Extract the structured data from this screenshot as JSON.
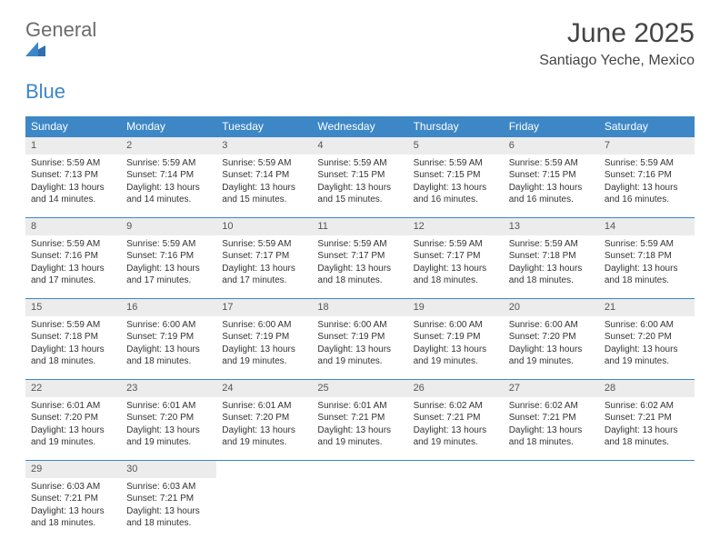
{
  "logo": {
    "word1": "General",
    "word2": "Blue"
  },
  "title": "June 2025",
  "subtitle": "Santiago Yeche, Mexico",
  "colors": {
    "header_bg": "#3d87c7",
    "header_text": "#ffffff",
    "daynum_bg": "#ececec",
    "border": "#3d87c7",
    "text": "#333333",
    "logo_gray": "#6b6b6b",
    "logo_blue": "#3d87c7",
    "page_bg": "#ffffff"
  },
  "weekdays": [
    "Sunday",
    "Monday",
    "Tuesday",
    "Wednesday",
    "Thursday",
    "Friday",
    "Saturday"
  ],
  "weeks": [
    [
      {
        "n": "1",
        "sr": "Sunrise: 5:59 AM",
        "ss": "Sunset: 7:13 PM",
        "d1": "Daylight: 13 hours",
        "d2": "and 14 minutes."
      },
      {
        "n": "2",
        "sr": "Sunrise: 5:59 AM",
        "ss": "Sunset: 7:14 PM",
        "d1": "Daylight: 13 hours",
        "d2": "and 14 minutes."
      },
      {
        "n": "3",
        "sr": "Sunrise: 5:59 AM",
        "ss": "Sunset: 7:14 PM",
        "d1": "Daylight: 13 hours",
        "d2": "and 15 minutes."
      },
      {
        "n": "4",
        "sr": "Sunrise: 5:59 AM",
        "ss": "Sunset: 7:15 PM",
        "d1": "Daylight: 13 hours",
        "d2": "and 15 minutes."
      },
      {
        "n": "5",
        "sr": "Sunrise: 5:59 AM",
        "ss": "Sunset: 7:15 PM",
        "d1": "Daylight: 13 hours",
        "d2": "and 16 minutes."
      },
      {
        "n": "6",
        "sr": "Sunrise: 5:59 AM",
        "ss": "Sunset: 7:15 PM",
        "d1": "Daylight: 13 hours",
        "d2": "and 16 minutes."
      },
      {
        "n": "7",
        "sr": "Sunrise: 5:59 AM",
        "ss": "Sunset: 7:16 PM",
        "d1": "Daylight: 13 hours",
        "d2": "and 16 minutes."
      }
    ],
    [
      {
        "n": "8",
        "sr": "Sunrise: 5:59 AM",
        "ss": "Sunset: 7:16 PM",
        "d1": "Daylight: 13 hours",
        "d2": "and 17 minutes."
      },
      {
        "n": "9",
        "sr": "Sunrise: 5:59 AM",
        "ss": "Sunset: 7:16 PM",
        "d1": "Daylight: 13 hours",
        "d2": "and 17 minutes."
      },
      {
        "n": "10",
        "sr": "Sunrise: 5:59 AM",
        "ss": "Sunset: 7:17 PM",
        "d1": "Daylight: 13 hours",
        "d2": "and 17 minutes."
      },
      {
        "n": "11",
        "sr": "Sunrise: 5:59 AM",
        "ss": "Sunset: 7:17 PM",
        "d1": "Daylight: 13 hours",
        "d2": "and 18 minutes."
      },
      {
        "n": "12",
        "sr": "Sunrise: 5:59 AM",
        "ss": "Sunset: 7:17 PM",
        "d1": "Daylight: 13 hours",
        "d2": "and 18 minutes."
      },
      {
        "n": "13",
        "sr": "Sunrise: 5:59 AM",
        "ss": "Sunset: 7:18 PM",
        "d1": "Daylight: 13 hours",
        "d2": "and 18 minutes."
      },
      {
        "n": "14",
        "sr": "Sunrise: 5:59 AM",
        "ss": "Sunset: 7:18 PM",
        "d1": "Daylight: 13 hours",
        "d2": "and 18 minutes."
      }
    ],
    [
      {
        "n": "15",
        "sr": "Sunrise: 5:59 AM",
        "ss": "Sunset: 7:18 PM",
        "d1": "Daylight: 13 hours",
        "d2": "and 18 minutes."
      },
      {
        "n": "16",
        "sr": "Sunrise: 6:00 AM",
        "ss": "Sunset: 7:19 PM",
        "d1": "Daylight: 13 hours",
        "d2": "and 18 minutes."
      },
      {
        "n": "17",
        "sr": "Sunrise: 6:00 AM",
        "ss": "Sunset: 7:19 PM",
        "d1": "Daylight: 13 hours",
        "d2": "and 19 minutes."
      },
      {
        "n": "18",
        "sr": "Sunrise: 6:00 AM",
        "ss": "Sunset: 7:19 PM",
        "d1": "Daylight: 13 hours",
        "d2": "and 19 minutes."
      },
      {
        "n": "19",
        "sr": "Sunrise: 6:00 AM",
        "ss": "Sunset: 7:19 PM",
        "d1": "Daylight: 13 hours",
        "d2": "and 19 minutes."
      },
      {
        "n": "20",
        "sr": "Sunrise: 6:00 AM",
        "ss": "Sunset: 7:20 PM",
        "d1": "Daylight: 13 hours",
        "d2": "and 19 minutes."
      },
      {
        "n": "21",
        "sr": "Sunrise: 6:00 AM",
        "ss": "Sunset: 7:20 PM",
        "d1": "Daylight: 13 hours",
        "d2": "and 19 minutes."
      }
    ],
    [
      {
        "n": "22",
        "sr": "Sunrise: 6:01 AM",
        "ss": "Sunset: 7:20 PM",
        "d1": "Daylight: 13 hours",
        "d2": "and 19 minutes."
      },
      {
        "n": "23",
        "sr": "Sunrise: 6:01 AM",
        "ss": "Sunset: 7:20 PM",
        "d1": "Daylight: 13 hours",
        "d2": "and 19 minutes."
      },
      {
        "n": "24",
        "sr": "Sunrise: 6:01 AM",
        "ss": "Sunset: 7:20 PM",
        "d1": "Daylight: 13 hours",
        "d2": "and 19 minutes."
      },
      {
        "n": "25",
        "sr": "Sunrise: 6:01 AM",
        "ss": "Sunset: 7:21 PM",
        "d1": "Daylight: 13 hours",
        "d2": "and 19 minutes."
      },
      {
        "n": "26",
        "sr": "Sunrise: 6:02 AM",
        "ss": "Sunset: 7:21 PM",
        "d1": "Daylight: 13 hours",
        "d2": "and 19 minutes."
      },
      {
        "n": "27",
        "sr": "Sunrise: 6:02 AM",
        "ss": "Sunset: 7:21 PM",
        "d1": "Daylight: 13 hours",
        "d2": "and 18 minutes."
      },
      {
        "n": "28",
        "sr": "Sunrise: 6:02 AM",
        "ss": "Sunset: 7:21 PM",
        "d1": "Daylight: 13 hours",
        "d2": "and 18 minutes."
      }
    ],
    [
      {
        "n": "29",
        "sr": "Sunrise: 6:03 AM",
        "ss": "Sunset: 7:21 PM",
        "d1": "Daylight: 13 hours",
        "d2": "and 18 minutes."
      },
      {
        "n": "30",
        "sr": "Sunrise: 6:03 AM",
        "ss": "Sunset: 7:21 PM",
        "d1": "Daylight: 13 hours",
        "d2": "and 18 minutes."
      },
      null,
      null,
      null,
      null,
      null
    ]
  ]
}
